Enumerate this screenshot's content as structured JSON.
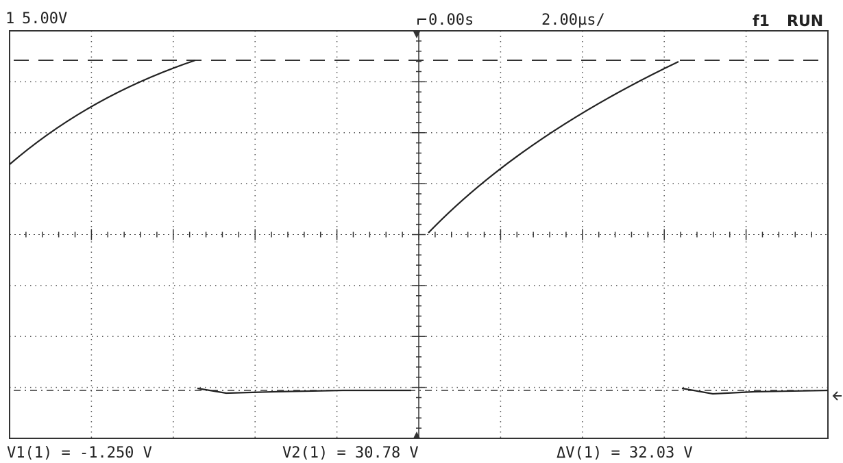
{
  "header": {
    "channel": "1",
    "scale": "5.00V",
    "time_offset": "0.00s",
    "timebase": "2.00µs/",
    "trigger": "f1",
    "status": "RUN"
  },
  "measurements": [
    "V1(1) = -1.250 V",
    "V2(1) = 30.78 V",
    "ΔV(1) = 32.03 V"
  ]
}
